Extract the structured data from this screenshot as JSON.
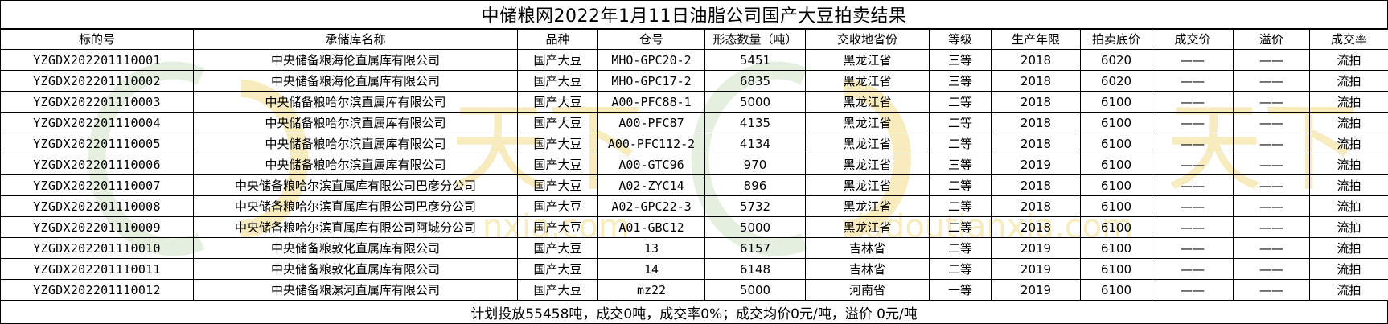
{
  "title": "中储粮网2022年1月11日油脂公司国产大豆拍卖结果",
  "columns": [
    "标的号",
    "承储库名称",
    "品种",
    "仓号",
    "形态数量（吨）",
    "交收地省份",
    "等级",
    "生产年限",
    "拍卖底价",
    "成交价",
    "溢价",
    "成交率"
  ],
  "rows": [
    [
      "YZGDX202201110001",
      "中央储备粮海伦直属库有限公司",
      "国产大豆",
      "MHO-GPC20-2",
      "5451",
      "黑龙江省",
      "三等",
      "2018",
      "6020",
      "——",
      "——",
      "流拍"
    ],
    [
      "YZGDX202201110002",
      "中央储备粮海伦直属库有限公司",
      "国产大豆",
      "MHO-GPC17-2",
      "6835",
      "黑龙江省",
      "三等",
      "2018",
      "6020",
      "——",
      "——",
      "流拍"
    ],
    [
      "YZGDX202201110003",
      "中央储备粮哈尔滨直属库有限公司",
      "国产大豆",
      "A00-PFC88-1",
      "5000",
      "黑龙江省",
      "二等",
      "2018",
      "6100",
      "——",
      "——",
      "流拍"
    ],
    [
      "YZGDX202201110004",
      "中央储备粮哈尔滨直属库有限公司",
      "国产大豆",
      "A00-PFC87",
      "4135",
      "黑龙江省",
      "二等",
      "2018",
      "6100",
      "——",
      "——",
      "流拍"
    ],
    [
      "YZGDX202201110005",
      "中央储备粮哈尔滨直属库有限公司",
      "国产大豆",
      "A00-PFC112-2",
      "4134",
      "黑龙江省",
      "二等",
      "2018",
      "6100",
      "——",
      "——",
      "流拍"
    ],
    [
      "YZGDX202201110006",
      "中央储备粮哈尔滨直属库有限公司",
      "国产大豆",
      "A00-GTC96",
      "970",
      "黑龙江省",
      "三等",
      "2019",
      "6100",
      "——",
      "——",
      "流拍"
    ],
    [
      "YZGDX202201110007",
      "中央储备粮哈尔滨直属库有限公司巴彦分公司",
      "国产大豆",
      "A02-ZYC14",
      "896",
      "黑龙江省",
      "二等",
      "2018",
      "6100",
      "——",
      "——",
      "流拍"
    ],
    [
      "YZGDX202201110008",
      "中央储备粮哈尔滨直属库有限公司巴彦分公司",
      "国产大豆",
      "A02-GPC22-3",
      "5732",
      "黑龙江省",
      "二等",
      "2018",
      "6100",
      "——",
      "——",
      "流拍"
    ],
    [
      "YZGDX202201110009",
      "中央储备粮哈尔滨直属库有限公司阿城分公司",
      "国产大豆",
      "A01-GBC12",
      "5000",
      "黑龙江省",
      "二等",
      "2018",
      "6100",
      "——",
      "——",
      "流拍"
    ],
    [
      "YZGDX202201110010",
      "中央储备粮敦化直属库有限公司",
      "国产大豆",
      "13",
      "6157",
      "吉林省",
      "二等",
      "2019",
      "6100",
      "——",
      "——",
      "流拍"
    ],
    [
      "YZGDX202201110011",
      "中央储备粮敦化直属库有限公司",
      "国产大豆",
      "14",
      "6148",
      "吉林省",
      "二等",
      "2019",
      "6100",
      "——",
      "——",
      "流拍"
    ],
    [
      "YZGDX202201110012",
      "中央储备粮漯河直属库有限公司",
      "国产大豆",
      "mz22",
      "5000",
      "河南省",
      "一等",
      "2019",
      "6100",
      "——",
      "——",
      "流拍"
    ]
  ],
  "footer": "计划投放55458吨，成交0吨，成交率0%；成交均价0元/吨，溢价 0元/吨",
  "watermark": {
    "text_1": "天下",
    "text_2": "天下",
    "url_1": "nxia.com",
    "url_2": "dadoutianxia.com",
    "color_yellow": "#f3dc8a",
    "color_green": "#cfe3c8"
  }
}
